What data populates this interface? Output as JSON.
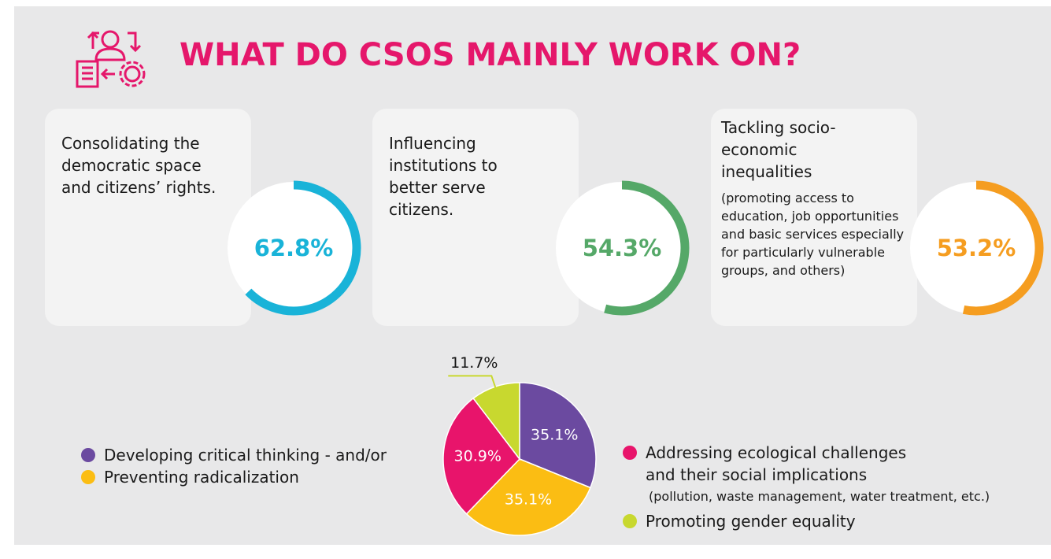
{
  "title": "WHAT DO CSOS MAINLY WORK ON?",
  "cards": [
    {
      "text": "Consolidating the democratic space and citizens’ rights.",
      "value": 62.8,
      "value_label": "62.8%",
      "color": "#19b3d8"
    },
    {
      "text": "Influencing institutions to better serve citizens.",
      "value": 54.3,
      "value_label": "54.3%",
      "color": "#55a868"
    },
    {
      "text": "Tackling socio-economic inequalities",
      "detail": "(promoting access to education, job opportunities and basic services especially for particularly vulnerable groups, and others)",
      "value": 53.2,
      "value_label": "53.2%",
      "color": "#f59d20"
    }
  ],
  "chart_data": {
    "type": "pie",
    "series": [
      {
        "name": "Developing critical thinking - and/or",
        "color": "#6b4aa0",
        "value": 35.1,
        "value_label": "35.1%"
      },
      {
        "name": "Preventing radicalization",
        "color": "#fbbd13",
        "value": 35.1,
        "value_label": "35.1%"
      },
      {
        "name": "Addressing ecological challenges and their social implications",
        "note": "(pollution, waste management, water treatment, etc.)",
        "color": "#e8146b",
        "value": 30.9,
        "value_label": "30.9%"
      },
      {
        "name": "Promoting gender equality",
        "color": "#c8d82f",
        "value": 11.7,
        "value_label": "11.7%"
      }
    ]
  }
}
